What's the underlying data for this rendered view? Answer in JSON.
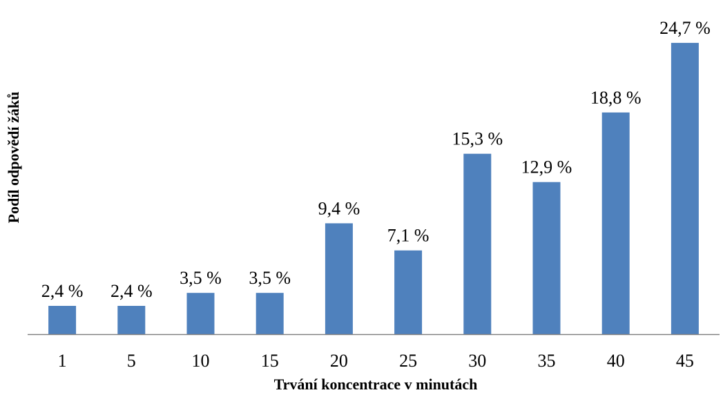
{
  "chart_data": {
    "type": "bar",
    "categories": [
      "1",
      "5",
      "10",
      "15",
      "20",
      "25",
      "30",
      "35",
      "40",
      "45"
    ],
    "values": [
      2.4,
      2.4,
      3.5,
      3.5,
      9.4,
      7.1,
      15.3,
      12.9,
      18.8,
      24.7
    ],
    "data_labels": [
      "2,4 %",
      "2,4 %",
      "3,5 %",
      "3,5 %",
      "9,4 %",
      "7,1 %",
      "15,3 %",
      "12,9 %",
      "18,8 %",
      "24,7 %"
    ],
    "title": "",
    "xlabel": "Trvání koncentrace v minutách",
    "ylabel": "Podíl odpovědí žáků",
    "ylim": [
      0,
      25
    ],
    "grid": false,
    "legend": "none",
    "colors": {
      "bar": "#4f81bd",
      "axis": "#808080"
    }
  }
}
